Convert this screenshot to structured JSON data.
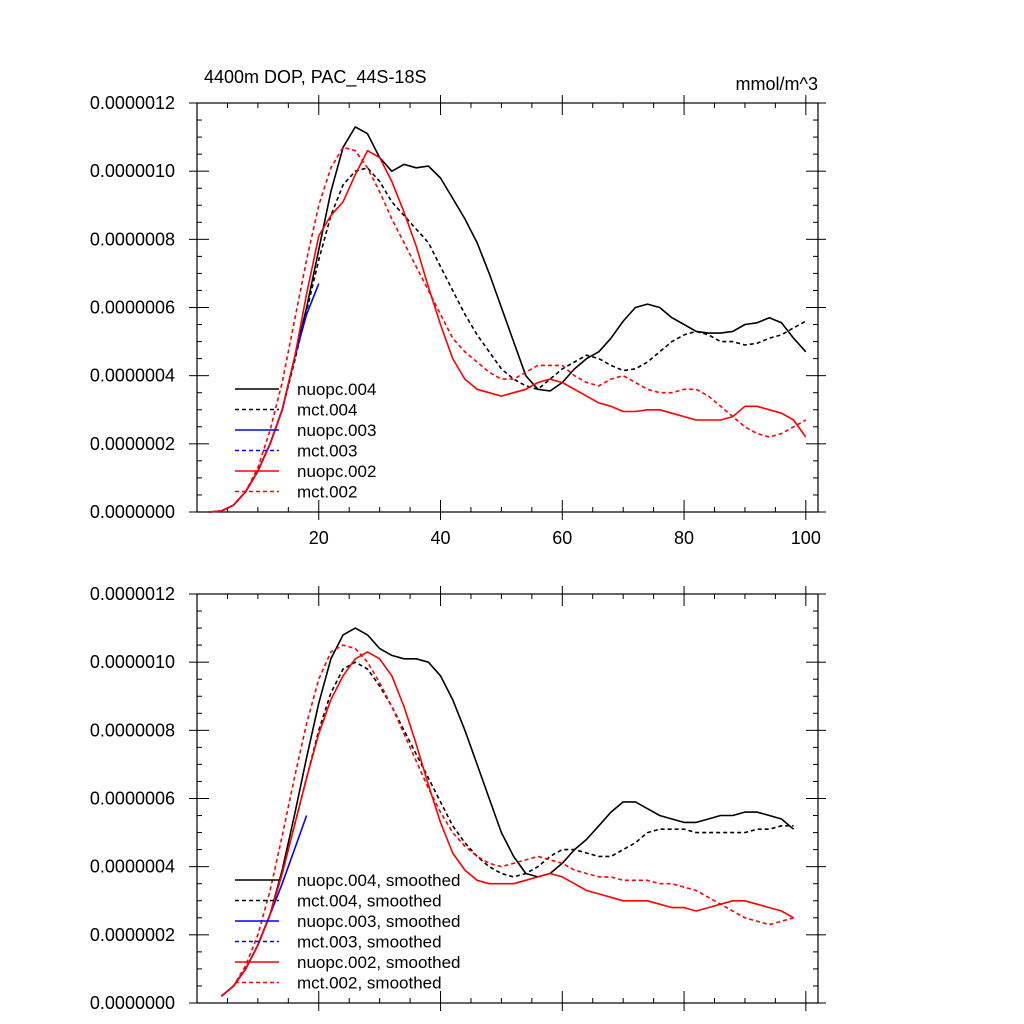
{
  "chart_data": [
    {
      "type": "line",
      "title": "4400m DOP, PAC_44S-18S",
      "units": "mmol/m^3",
      "xlim": [
        0,
        102
      ],
      "ylim": [
        0,
        1.2e-06
      ],
      "xticks": [
        20,
        40,
        60,
        80,
        100
      ],
      "xtick_labels": [
        "20",
        "40",
        "60",
        "80",
        "100"
      ],
      "yticks": [
        0,
        2e-07,
        4e-07,
        6e-07,
        8e-07,
        1e-06,
        1.2e-06
      ],
      "ytick_labels": [
        "0.0000000",
        "0.0000002",
        "0.0000004",
        "0.0000006",
        "0.0000008",
        "0.0000010",
        "0.0000012"
      ],
      "series": [
        {
          "name": "nuopc.004",
          "color": "#000000",
          "dash": "solid",
          "x": [
            2,
            4,
            6,
            8,
            10,
            12,
            14,
            16,
            18,
            20,
            22,
            24,
            26,
            28,
            30,
            32,
            34,
            36,
            38,
            40,
            42,
            44,
            46,
            48,
            50,
            52,
            54,
            56,
            58,
            60,
            62,
            64,
            66,
            68,
            70,
            72,
            74,
            76,
            78,
            80,
            82,
            84,
            86,
            88,
            90,
            92,
            94,
            96,
            98,
            100
          ],
          "y": [
            0,
            3e-09,
            2e-08,
            6e-08,
            1.2e-07,
            2e-07,
            3e-07,
            4.5e-07,
            6e-07,
            7.7e-07,
            9.4e-07,
            1.07e-06,
            1.13e-06,
            1.11e-06,
            1.04e-06,
            1e-06,
            1.02e-06,
            1.01e-06,
            1.015e-06,
            9.8e-07,
            9.2e-07,
            8.6e-07,
            7.9e-07,
            7e-07,
            6e-07,
            5e-07,
            4e-07,
            3.6e-07,
            3.55e-07,
            3.8e-07,
            4.2e-07,
            4.5e-07,
            4.7e-07,
            5.1e-07,
            5.6e-07,
            6e-07,
            6.1e-07,
            6e-07,
            5.7e-07,
            5.5e-07,
            5.3e-07,
            5.25e-07,
            5.25e-07,
            5.3e-07,
            5.5e-07,
            5.55e-07,
            5.7e-07,
            5.55e-07,
            5.1e-07,
            4.7e-07
          ]
        },
        {
          "name": "mct.004",
          "color": "#000000",
          "dash": "dashed",
          "x": [
            2,
            4,
            6,
            8,
            10,
            12,
            14,
            16,
            18,
            20,
            22,
            24,
            26,
            28,
            30,
            32,
            34,
            36,
            38,
            40,
            42,
            44,
            46,
            48,
            50,
            52,
            54,
            56,
            58,
            60,
            62,
            64,
            66,
            68,
            70,
            72,
            74,
            76,
            78,
            80,
            82,
            84,
            86,
            88,
            90,
            92,
            94,
            96,
            98,
            100
          ],
          "y": [
            0,
            3e-09,
            2e-08,
            6e-08,
            1.2e-07,
            2e-07,
            3e-07,
            4.4e-07,
            5.9e-07,
            7.4e-07,
            8.7e-07,
            9.6e-07,
            1e-06,
            1.01e-06,
            9.7e-07,
            9.1e-07,
            8.7e-07,
            8.3e-07,
            7.9e-07,
            7.2e-07,
            6.5e-07,
            5.8e-07,
            5.2e-07,
            4.7e-07,
            4.2e-07,
            3.9e-07,
            3.7e-07,
            3.6e-07,
            3.9e-07,
            4.2e-07,
            4.4e-07,
            4.6e-07,
            4.5e-07,
            4.3e-07,
            4.15e-07,
            4.2e-07,
            4.4e-07,
            4.7e-07,
            5e-07,
            5.2e-07,
            5.3e-07,
            5.2e-07,
            5e-07,
            5e-07,
            4.9e-07,
            4.95e-07,
            5.1e-07,
            5.2e-07,
            5.4e-07,
            5.6e-07
          ]
        },
        {
          "name": "nuopc.003",
          "color": "#0000ff",
          "dash": "solid",
          "x": [
            2,
            4,
            6,
            8,
            10,
            12,
            14,
            16,
            18,
            20
          ],
          "y": [
            0,
            3e-09,
            2e-08,
            6e-08,
            1.2e-07,
            2e-07,
            3e-07,
            4.5e-07,
            5.8e-07,
            6.7e-07
          ]
        },
        {
          "name": "mct.003",
          "color": "#0000ff",
          "dash": "dashed",
          "x": [
            2,
            4,
            6,
            8,
            10,
            12
          ],
          "y": [
            0,
            3e-09,
            2e-08,
            6e-08,
            1.2e-07,
            2e-07
          ]
        },
        {
          "name": "nuopc.002",
          "color": "#ff0000",
          "dash": "solid",
          "x": [
            2,
            4,
            6,
            8,
            10,
            12,
            14,
            16,
            18,
            20,
            22,
            24,
            26,
            28,
            30,
            32,
            34,
            36,
            38,
            40,
            42,
            44,
            46,
            48,
            50,
            52,
            54,
            56,
            58,
            60,
            62,
            64,
            66,
            68,
            70,
            72,
            74,
            76,
            78,
            80,
            82,
            84,
            86,
            88,
            90,
            92,
            94,
            96,
            98,
            100
          ],
          "y": [
            0,
            3e-09,
            2e-08,
            6e-08,
            1.2e-07,
            2e-07,
            3e-07,
            4.5e-07,
            6.4e-07,
            8.1e-07,
            8.7e-07,
            9.1e-07,
            9.9e-07,
            1.06e-06,
            1.04e-06,
            9.7e-07,
            8.8e-07,
            7.8e-07,
            6.6e-07,
            5.5e-07,
            4.5e-07,
            3.9e-07,
            3.6e-07,
            3.5e-07,
            3.4e-07,
            3.5e-07,
            3.6e-07,
            3.8e-07,
            3.9e-07,
            3.8e-07,
            3.6e-07,
            3.4e-07,
            3.2e-07,
            3.1e-07,
            2.95e-07,
            2.95e-07,
            3e-07,
            3e-07,
            2.9e-07,
            2.8e-07,
            2.7e-07,
            2.7e-07,
            2.7e-07,
            2.8e-07,
            3.1e-07,
            3.1e-07,
            3e-07,
            2.9e-07,
            2.7e-07,
            2.2e-07
          ]
        },
        {
          "name": "mct.002",
          "color": "#ff0000",
          "dash": "dashed",
          "x": [
            2,
            4,
            6,
            8,
            10,
            12,
            14,
            16,
            18,
            20,
            22,
            24,
            26,
            28,
            30,
            32,
            34,
            36,
            38,
            40,
            42,
            44,
            46,
            48,
            50,
            52,
            54,
            56,
            58,
            60,
            62,
            64,
            66,
            68,
            70,
            72,
            74,
            76,
            78,
            80,
            82,
            84,
            86,
            88,
            90,
            92,
            94,
            96,
            98,
            100
          ],
          "y": [
            0,
            3e-09,
            2e-08,
            6e-08,
            1.3e-07,
            2.4e-07,
            3.8e-07,
            5.6e-07,
            7.4e-07,
            9e-07,
            1.01e-06,
            1.07e-06,
            1.06e-06,
            1.01e-06,
            9.4e-07,
            8.6e-07,
            7.9e-07,
            7.2e-07,
            6.5e-07,
            5.8e-07,
            5.1e-07,
            4.7e-07,
            4.4e-07,
            4.1e-07,
            3.9e-07,
            3.9e-07,
            4.1e-07,
            4.3e-07,
            4.3e-07,
            4.3e-07,
            4e-07,
            3.8e-07,
            3.7e-07,
            3.9e-07,
            4e-07,
            3.8e-07,
            3.6e-07,
            3.5e-07,
            3.5e-07,
            3.6e-07,
            3.6e-07,
            3.4e-07,
            3.1e-07,
            2.8e-07,
            2.5e-07,
            2.3e-07,
            2.2e-07,
            2.3e-07,
            2.5e-07,
            2.7e-07
          ]
        }
      ]
    },
    {
      "type": "line",
      "title": "",
      "units": "",
      "xlim": [
        0,
        102
      ],
      "ylim": [
        0,
        1.2e-06
      ],
      "xticks": [
        20,
        40,
        60,
        80,
        100
      ],
      "xtick_labels": [],
      "yticks": [
        0,
        2e-07,
        4e-07,
        6e-07,
        8e-07,
        1e-06,
        1.2e-06
      ],
      "ytick_labels": [
        "0.0000000",
        "0.0000002",
        "0.0000004",
        "0.0000006",
        "0.0000008",
        "0.0000010",
        "0.0000012"
      ],
      "series": [
        {
          "name": "nuopc.004, smoothed",
          "color": "#000000",
          "dash": "solid",
          "x": [
            4,
            6,
            8,
            10,
            12,
            14,
            16,
            18,
            20,
            22,
            24,
            26,
            28,
            30,
            32,
            34,
            36,
            38,
            40,
            42,
            44,
            46,
            48,
            50,
            52,
            54,
            56,
            58,
            60,
            62,
            64,
            66,
            68,
            70,
            72,
            74,
            76,
            78,
            80,
            82,
            84,
            86,
            88,
            90,
            92,
            94,
            96,
            98
          ],
          "y": [
            2e-08,
            5e-08,
            1e-07,
            1.7e-07,
            2.6e-07,
            3.9e-07,
            5.5e-07,
            7.2e-07,
            8.8e-07,
            1.01e-06,
            1.08e-06,
            1.1e-06,
            1.08e-06,
            1.04e-06,
            1.02e-06,
            1.01e-06,
            1.01e-06,
            1e-06,
            9.6e-07,
            8.9e-07,
            8e-07,
            7e-07,
            6e-07,
            5e-07,
            4.3e-07,
            3.8e-07,
            3.7e-07,
            3.8e-07,
            4.1e-07,
            4.5e-07,
            4.8e-07,
            5.2e-07,
            5.6e-07,
            5.9e-07,
            5.9e-07,
            5.7e-07,
            5.5e-07,
            5.4e-07,
            5.3e-07,
            5.3e-07,
            5.4e-07,
            5.5e-07,
            5.5e-07,
            5.6e-07,
            5.6e-07,
            5.5e-07,
            5.4e-07,
            5.1e-07
          ]
        },
        {
          "name": "mct.004, smoothed",
          "color": "#000000",
          "dash": "dashed",
          "x": [
            4,
            6,
            8,
            10,
            12,
            14,
            16,
            18,
            20,
            22,
            24,
            26,
            28,
            30,
            32,
            34,
            36,
            38,
            40,
            42,
            44,
            46,
            48,
            50,
            52,
            54,
            56,
            58,
            60,
            62,
            64,
            66,
            68,
            70,
            72,
            74,
            76,
            78,
            80,
            82,
            84,
            86,
            88,
            90,
            92,
            94,
            96,
            98
          ],
          "y": [
            2e-08,
            5e-08,
            1e-07,
            1.7e-07,
            2.6e-07,
            3.8e-07,
            5.2e-07,
            6.6e-07,
            8e-07,
            9.1e-07,
            9.8e-07,
            1e-06,
            9.8e-07,
            9.3e-07,
            8.7e-07,
            8e-07,
            7.3e-07,
            6.6e-07,
            5.9e-07,
            5.2e-07,
            4.7e-07,
            4.3e-07,
            4e-07,
            3.8e-07,
            3.7e-07,
            3.8e-07,
            4e-07,
            4.3e-07,
            4.5e-07,
            4.5e-07,
            4.4e-07,
            4.3e-07,
            4.3e-07,
            4.5e-07,
            4.7e-07,
            5e-07,
            5.1e-07,
            5.1e-07,
            5.1e-07,
            5e-07,
            5e-07,
            5e-07,
            5e-07,
            5e-07,
            5.1e-07,
            5.1e-07,
            5.2e-07,
            5.2e-07
          ]
        },
        {
          "name": "nuopc.003, smoothed",
          "color": "#0000ff",
          "dash": "solid",
          "x": [
            4,
            6,
            8,
            10,
            12,
            14,
            16,
            18
          ],
          "y": [
            2e-08,
            5e-08,
            1e-07,
            1.7e-07,
            2.6e-07,
            3.5e-07,
            4.5e-07,
            5.5e-07
          ]
        },
        {
          "name": "mct.003, smoothed",
          "color": "#0000ff",
          "dash": "dashed",
          "x": [
            4,
            6,
            8,
            10,
            12
          ],
          "y": [
            2e-08,
            5e-08,
            1e-07,
            1.7e-07,
            2.6e-07
          ]
        },
        {
          "name": "nuopc.002, smoothed",
          "color": "#ff0000",
          "dash": "solid",
          "x": [
            4,
            6,
            8,
            10,
            12,
            14,
            16,
            18,
            20,
            22,
            24,
            26,
            28,
            30,
            32,
            34,
            36,
            38,
            40,
            42,
            44,
            46,
            48,
            50,
            52,
            54,
            56,
            58,
            60,
            62,
            64,
            66,
            68,
            70,
            72,
            74,
            76,
            78,
            80,
            82,
            84,
            86,
            88,
            90,
            92,
            94,
            96,
            98
          ],
          "y": [
            2e-08,
            5e-08,
            1e-07,
            1.7e-07,
            2.6e-07,
            3.8e-07,
            5.2e-07,
            6.6e-07,
            7.9e-07,
            8.9e-07,
            9.6e-07,
            1.01e-06,
            1.03e-06,
            1.01e-06,
            9.6e-07,
            8.7e-07,
            7.6e-07,
            6.4e-07,
            5.3e-07,
            4.4e-07,
            3.9e-07,
            3.6e-07,
            3.5e-07,
            3.5e-07,
            3.5e-07,
            3.6e-07,
            3.7e-07,
            3.8e-07,
            3.7e-07,
            3.5e-07,
            3.3e-07,
            3.2e-07,
            3.1e-07,
            3e-07,
            3e-07,
            3e-07,
            2.9e-07,
            2.8e-07,
            2.8e-07,
            2.7e-07,
            2.8e-07,
            2.9e-07,
            3e-07,
            3e-07,
            2.9e-07,
            2.8e-07,
            2.7e-07,
            2.5e-07
          ]
        },
        {
          "name": "mct.002, smoothed",
          "color": "#ff0000",
          "dash": "dashed",
          "x": [
            4,
            6,
            8,
            10,
            12,
            14,
            16,
            18,
            20,
            22,
            24,
            26,
            28,
            30,
            32,
            34,
            36,
            38,
            40,
            42,
            44,
            46,
            48,
            50,
            52,
            54,
            56,
            58,
            60,
            62,
            64,
            66,
            68,
            70,
            72,
            74,
            76,
            78,
            80,
            82,
            84,
            86,
            88,
            90,
            92,
            94,
            96,
            98
          ],
          "y": [
            2e-08,
            5e-08,
            1.1e-07,
            2e-07,
            3.3e-07,
            4.9e-07,
            6.6e-07,
            8.2e-07,
            9.5e-07,
            1.03e-06,
            1.05e-06,
            1.04e-06,
            1e-06,
            9.4e-07,
            8.7e-07,
            7.9e-07,
            7.1e-07,
            6.3e-07,
            5.6e-07,
            5e-07,
            4.6e-07,
            4.3e-07,
            4.1e-07,
            4e-07,
            4.1e-07,
            4.2e-07,
            4.3e-07,
            4.2e-07,
            4.1e-07,
            3.9e-07,
            3.8e-07,
            3.7e-07,
            3.7e-07,
            3.6e-07,
            3.6e-07,
            3.6e-07,
            3.5e-07,
            3.5e-07,
            3.4e-07,
            3.3e-07,
            3.1e-07,
            2.9e-07,
            2.7e-07,
            2.5e-07,
            2.4e-07,
            2.3e-07,
            2.4e-07,
            2.5e-07
          ]
        }
      ]
    }
  ]
}
